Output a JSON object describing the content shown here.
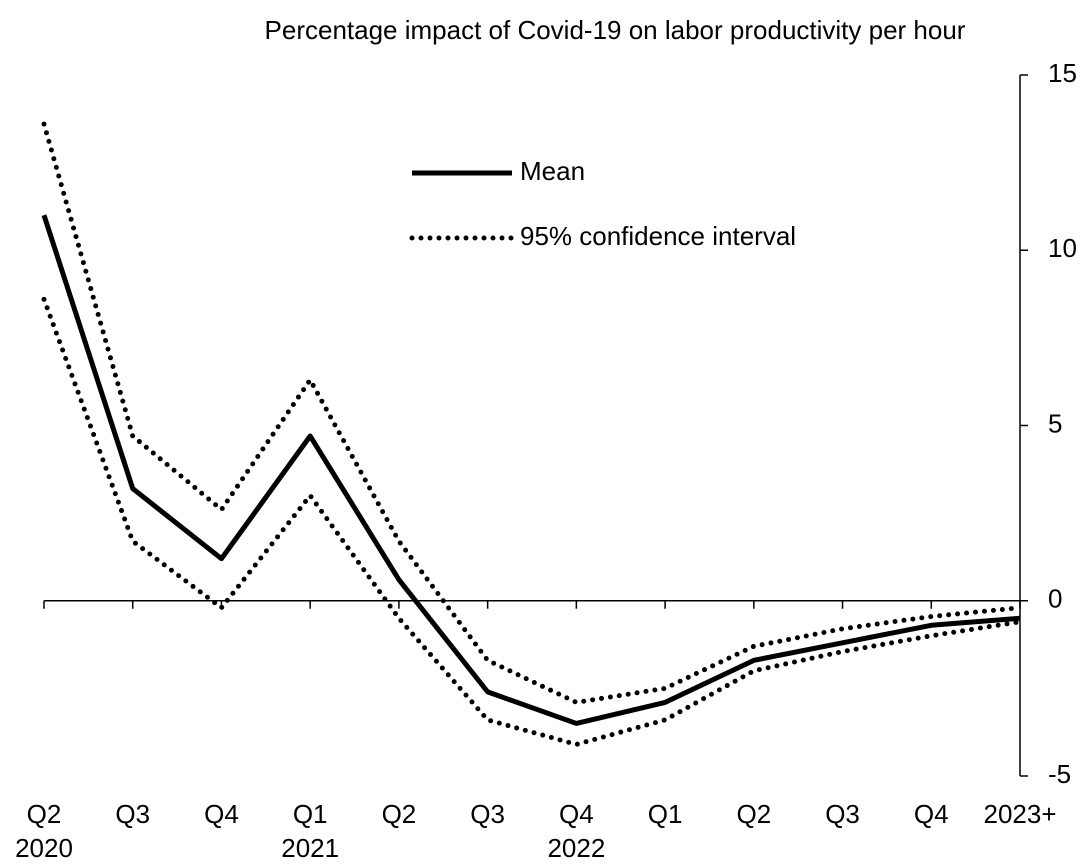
{
  "chart_data": {
    "type": "line",
    "title": "Percentage impact of Covid-19 on labor productivity per hour",
    "categories": [
      "Q2",
      "Q3",
      "Q4",
      "Q1",
      "Q2",
      "Q3",
      "Q4",
      "Q1",
      "Q2",
      "Q3",
      "Q4",
      "2023+"
    ],
    "years": [
      "2020",
      null,
      null,
      "2021",
      null,
      null,
      "2022",
      null,
      null,
      null,
      null,
      null
    ],
    "series": [
      {
        "name": "Mean",
        "color": "#000000",
        "values": [
          11.0,
          3.2,
          1.2,
          4.7,
          0.6,
          -2.6,
          -3.5,
          -2.9,
          -1.7,
          -1.2,
          -0.7,
          -0.5
        ]
      },
      {
        "name": "95% confidence interval",
        "color": "#000000",
        "upper": [
          13.6,
          4.7,
          2.6,
          6.3,
          1.7,
          -1.7,
          -2.9,
          -2.5,
          -1.3,
          -0.8,
          -0.45,
          -0.2
        ],
        "lower": [
          8.6,
          1.7,
          -0.2,
          3.0,
          -0.5,
          -3.4,
          -4.1,
          -3.4,
          -2.0,
          -1.45,
          -1.0,
          -0.6
        ]
      }
    ],
    "ylim": [
      -5,
      15
    ],
    "yticks": [
      -5,
      0,
      5,
      10,
      15
    ],
    "y_axis_side": "right"
  }
}
